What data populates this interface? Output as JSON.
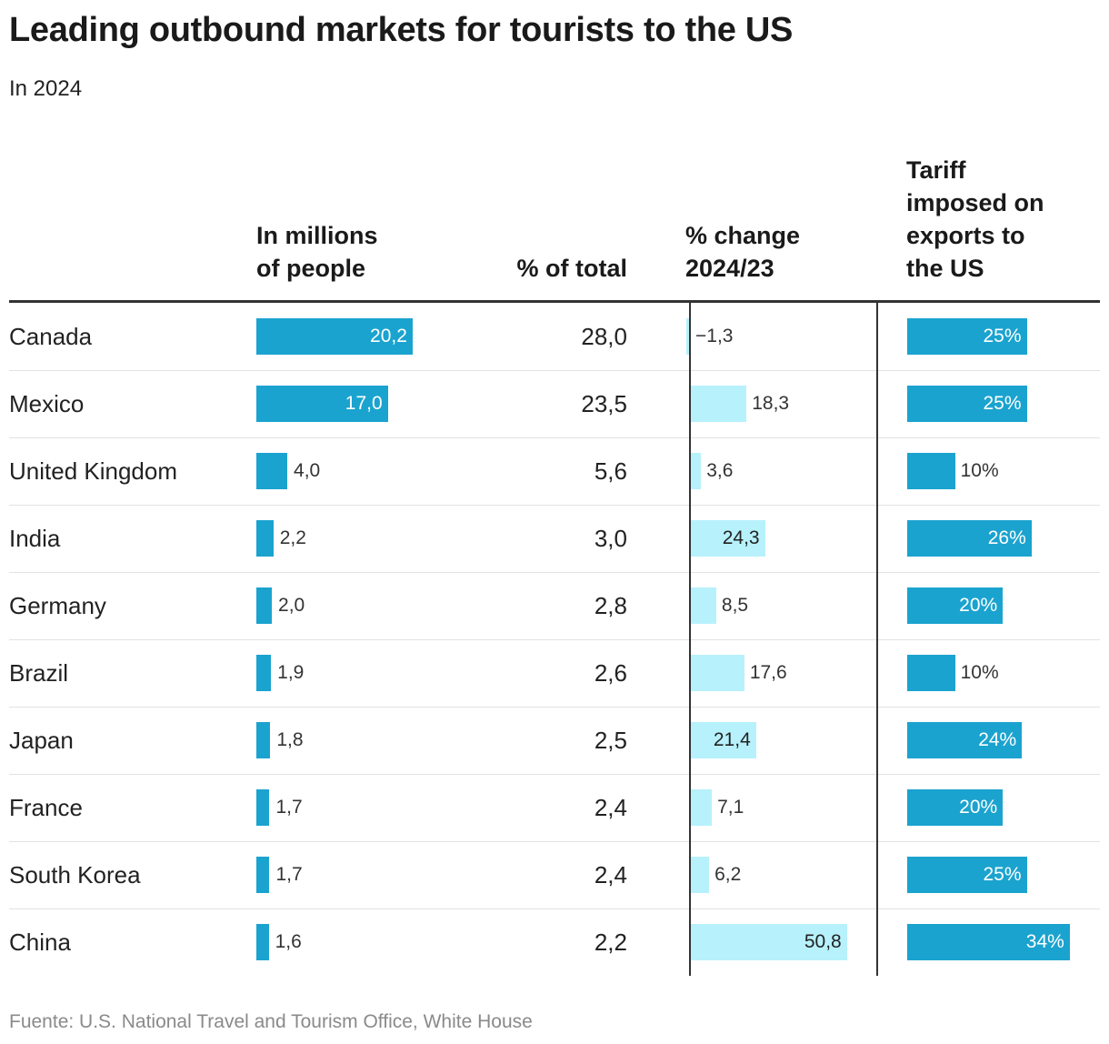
{
  "chart_data": {
    "type": "table",
    "title": "Leading outbound markets for tourists to the US",
    "subtitle": "In 2024",
    "columns": [
      {
        "key": "millions",
        "label_lines": [
          "In millions",
          "of people"
        ]
      },
      {
        "key": "share",
        "label_lines": [
          "% of total"
        ]
      },
      {
        "key": "change",
        "label_lines": [
          "% change",
          "2024/23"
        ]
      },
      {
        "key": "tariff",
        "label_lines": [
          "Tariff",
          "imposed on",
          "exports to",
          "the US"
        ]
      }
    ],
    "rows": [
      {
        "country": "Canada",
        "millions": 20.2,
        "millions_label": "20,2",
        "share_label": "28,0",
        "change": -1.3,
        "change_label": "−1,3",
        "tariff": 25,
        "tariff_label": "25%"
      },
      {
        "country": "Mexico",
        "millions": 17.0,
        "millions_label": "17,0",
        "share_label": "23,5",
        "change": 18.3,
        "change_label": "18,3",
        "tariff": 25,
        "tariff_label": "25%"
      },
      {
        "country": "United Kingdom",
        "millions": 4.0,
        "millions_label": "4,0",
        "share_label": "5,6",
        "change": 3.6,
        "change_label": "3,6",
        "tariff": 10,
        "tariff_label": "10%"
      },
      {
        "country": "India",
        "millions": 2.2,
        "millions_label": "2,2",
        "share_label": "3,0",
        "change": 24.3,
        "change_label": "24,3",
        "tariff": 26,
        "tariff_label": "26%"
      },
      {
        "country": "Germany",
        "millions": 2.0,
        "millions_label": "2,0",
        "share_label": "2,8",
        "change": 8.5,
        "change_label": "8,5",
        "tariff": 20,
        "tariff_label": "20%"
      },
      {
        "country": "Brazil",
        "millions": 1.9,
        "millions_label": "1,9",
        "share_label": "2,6",
        "change": 17.6,
        "change_label": "17,6",
        "tariff": 10,
        "tariff_label": "10%"
      },
      {
        "country": "Japan",
        "millions": 1.8,
        "millions_label": "1,8",
        "share_label": "2,5",
        "change": 21.4,
        "change_label": "21,4",
        "tariff": 24,
        "tariff_label": "24%"
      },
      {
        "country": "France",
        "millions": 1.7,
        "millions_label": "1,7",
        "share_label": "2,4",
        "change": 7.1,
        "change_label": "7,1",
        "tariff": 20,
        "tariff_label": "20%"
      },
      {
        "country": "South Korea",
        "millions": 1.7,
        "millions_label": "1,7",
        "share_label": "2,4",
        "change": 6.2,
        "change_label": "6,2",
        "tariff": 25,
        "tariff_label": "25%"
      },
      {
        "country": "China",
        "millions": 1.6,
        "millions_label": "1,6",
        "share_label": "2,2",
        "change": 50.8,
        "change_label": "50,8",
        "tariff": 34,
        "tariff_label": "34%"
      }
    ],
    "source": "Fuente: U.S. National Travel and Tourism Office, White House",
    "colors": {
      "primary_bar": "#1ba3cf",
      "change_bar": "#b7f1fc",
      "rule": "#333333",
      "row_separator": "#e2e2e2",
      "source_text": "#8a8a8a"
    }
  }
}
